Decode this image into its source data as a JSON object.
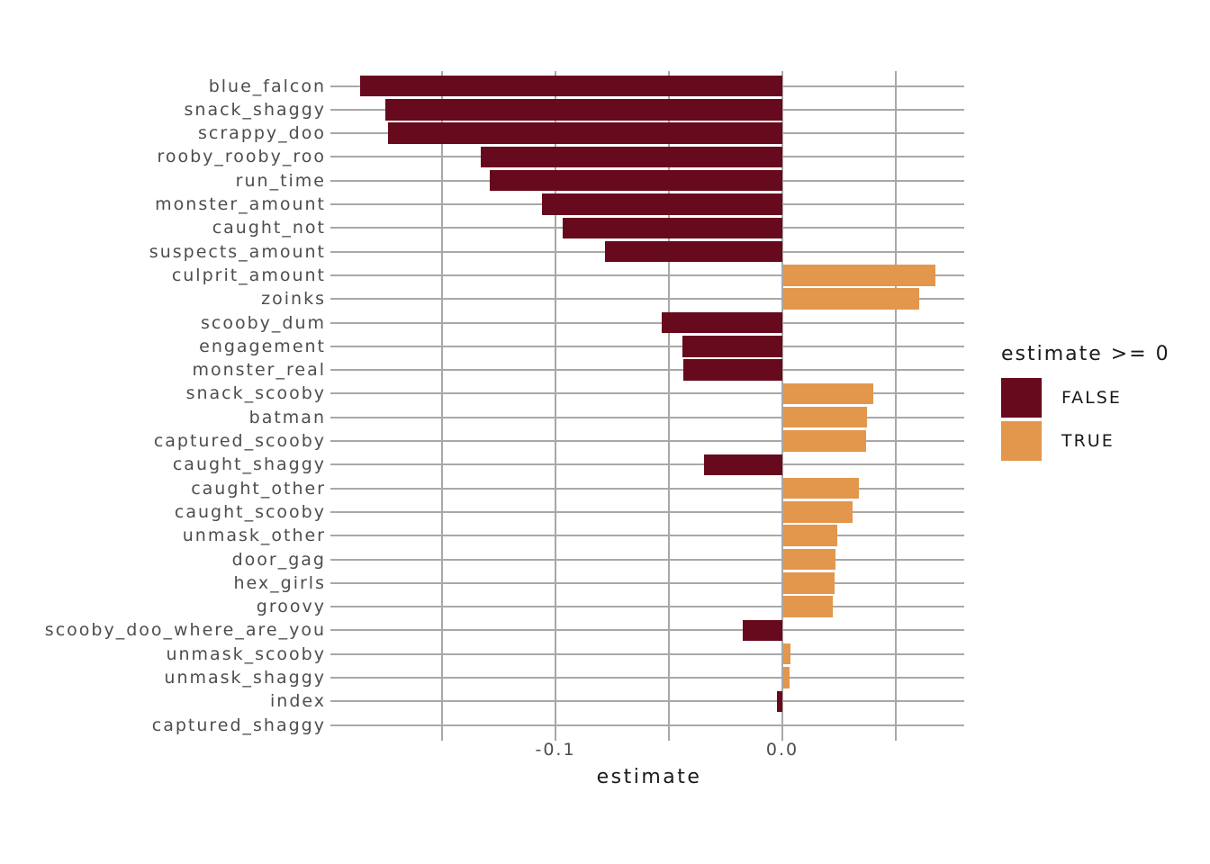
{
  "chart_data": {
    "type": "bar",
    "orientation": "horizontal",
    "title": "",
    "xlabel": "estimate",
    "ylabel": "",
    "categories": [
      "blue_falcon",
      "snack_shaggy",
      "scrappy_doo",
      "rooby_rooby_roo",
      "run_time",
      "monster_amount",
      "caught_not",
      "suspects_amount",
      "culprit_amount",
      "zoinks",
      "scooby_dum",
      "engagement",
      "monster_real",
      "snack_scooby",
      "batman",
      "captured_scooby",
      "caught_shaggy",
      "caught_other",
      "caught_scooby",
      "unmask_other",
      "door_gag",
      "hex_girls",
      "groovy",
      "scooby_doo_where_are_you",
      "unmask_scooby",
      "unmask_shaggy",
      "index",
      "captured_shaggy"
    ],
    "values": [
      -0.186,
      -0.175,
      -0.174,
      -0.133,
      -0.129,
      -0.106,
      -0.097,
      -0.078,
      0.067,
      0.06,
      -0.053,
      -0.044,
      -0.0435,
      0.0395,
      0.037,
      0.0365,
      -0.0345,
      0.0335,
      0.0305,
      0.024,
      0.023,
      0.0227,
      0.022,
      -0.0175,
      0.0033,
      0.0029,
      -0.0022,
      0.0
    ],
    "color_by": "estimate >= 0",
    "fill_false": "#670a1d",
    "fill_true": "#e2974d",
    "xlim": [
      -0.198,
      0.08
    ],
    "x_major_ticks": [
      -0.1,
      0.0
    ],
    "x_minor_ticks": [
      -0.15,
      -0.05,
      0.05
    ],
    "grid": true,
    "legend_position": "right"
  },
  "x_axis": {
    "title": "estimate",
    "ticks": [
      {
        "label": "-0.1",
        "value": -0.1
      },
      {
        "label": "0.0",
        "value": 0.0
      }
    ]
  },
  "legend": {
    "title": "estimate >= 0",
    "items": [
      {
        "label": "FALSE",
        "color": "#670a1d"
      },
      {
        "label": "TRUE",
        "color": "#e2974d"
      }
    ]
  },
  "colors": {
    "false_bar": "#670a1d",
    "true_bar": "#e2974d",
    "gridline": "#a8a8a8",
    "axis_text": "#4d4d4d",
    "title_text": "#1a1a1a",
    "background": "#ffffff"
  }
}
